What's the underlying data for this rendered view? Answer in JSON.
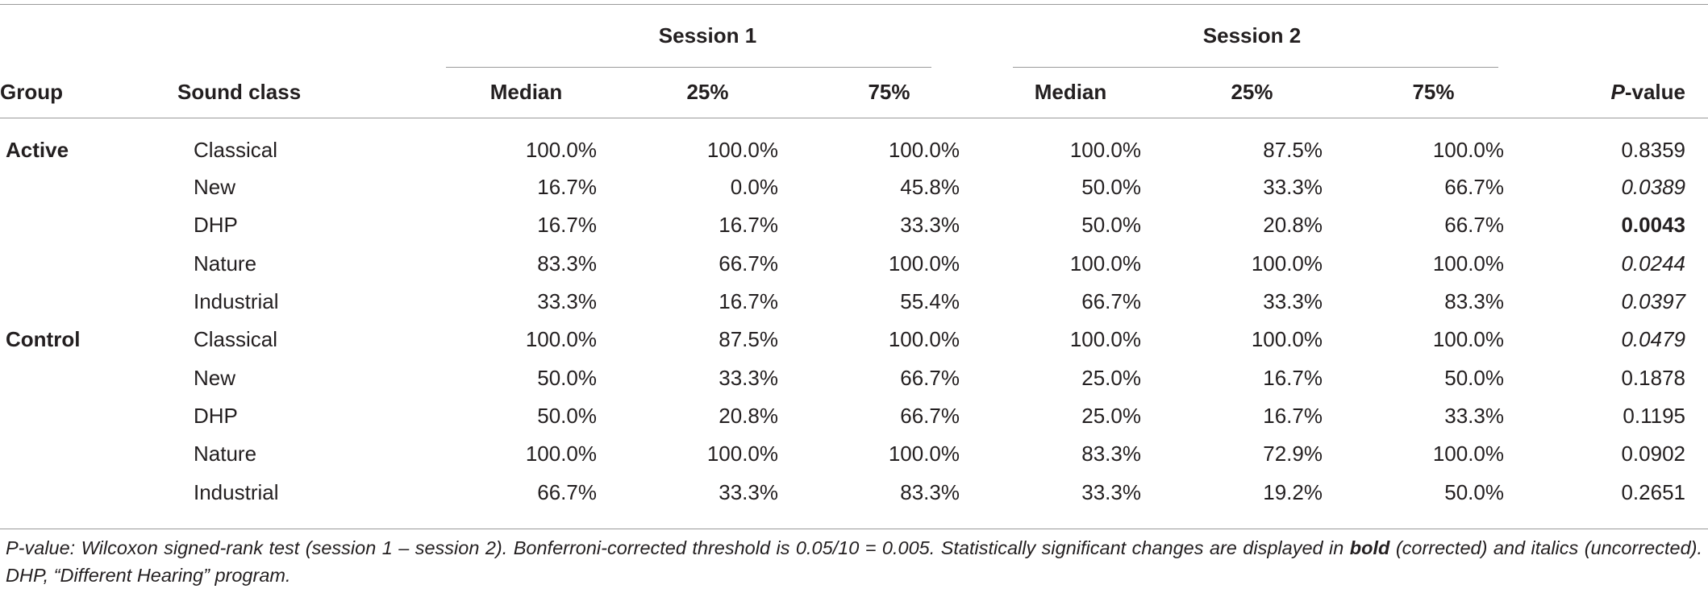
{
  "table": {
    "header": {
      "session1": "Session 1",
      "session2": "Session 2",
      "group": "Group",
      "sound_class": "Sound class",
      "median1": "Median",
      "p25_1": "25%",
      "p75_1": "75%",
      "median2": "Median",
      "p25_2": "25%",
      "p75_2": "75%",
      "p_letter": "P",
      "p_suffix": "-value"
    },
    "rows": [
      {
        "group": "Active",
        "sound_class": "Classical",
        "s1_median": "100.0%",
        "s1_p25": "100.0%",
        "s1_p75": "100.0%",
        "s2_median": "100.0%",
        "s2_p25": "87.5%",
        "s2_p75": "100.0%",
        "p_value": "0.8359",
        "p_style": "normal"
      },
      {
        "group": "",
        "sound_class": "New",
        "s1_median": "16.7%",
        "s1_p25": "0.0%",
        "s1_p75": "45.8%",
        "s2_median": "50.0%",
        "s2_p25": "33.3%",
        "s2_p75": "66.7%",
        "p_value": "0.0389",
        "p_style": "italic"
      },
      {
        "group": "",
        "sound_class": "DHP",
        "s1_median": "16.7%",
        "s1_p25": "16.7%",
        "s1_p75": "33.3%",
        "s2_median": "50.0%",
        "s2_p25": "20.8%",
        "s2_p75": "66.7%",
        "p_value": "0.0043",
        "p_style": "bold"
      },
      {
        "group": "",
        "sound_class": "Nature",
        "s1_median": "83.3%",
        "s1_p25": "66.7%",
        "s1_p75": "100.0%",
        "s2_median": "100.0%",
        "s2_p25": "100.0%",
        "s2_p75": "100.0%",
        "p_value": "0.0244",
        "p_style": "italic"
      },
      {
        "group": "",
        "sound_class": "Industrial",
        "s1_median": "33.3%",
        "s1_p25": "16.7%",
        "s1_p75": "55.4%",
        "s2_median": "66.7%",
        "s2_p25": "33.3%",
        "s2_p75": "83.3%",
        "p_value": "0.0397",
        "p_style": "italic"
      },
      {
        "group": "Control",
        "sound_class": "Classical",
        "s1_median": "100.0%",
        "s1_p25": "87.5%",
        "s1_p75": "100.0%",
        "s2_median": "100.0%",
        "s2_p25": "100.0%",
        "s2_p75": "100.0%",
        "p_value": "0.0479",
        "p_style": "italic"
      },
      {
        "group": "",
        "sound_class": "New",
        "s1_median": "50.0%",
        "s1_p25": "33.3%",
        "s1_p75": "66.7%",
        "s2_median": "25.0%",
        "s2_p25": "16.7%",
        "s2_p75": "50.0%",
        "p_value": "0.1878",
        "p_style": "normal"
      },
      {
        "group": "",
        "sound_class": "DHP",
        "s1_median": "50.0%",
        "s1_p25": "20.8%",
        "s1_p75": "66.7%",
        "s2_median": "25.0%",
        "s2_p25": "16.7%",
        "s2_p75": "33.3%",
        "p_value": "0.1195",
        "p_style": "normal"
      },
      {
        "group": "",
        "sound_class": "Nature",
        "s1_median": "100.0%",
        "s1_p25": "100.0%",
        "s1_p75": "100.0%",
        "s2_median": "83.3%",
        "s2_p25": "72.9%",
        "s2_p75": "100.0%",
        "p_value": "0.0902",
        "p_style": "normal"
      },
      {
        "group": "",
        "sound_class": "Industrial",
        "s1_median": "66.7%",
        "s1_p25": "33.3%",
        "s1_p75": "83.3%",
        "s2_median": "33.3%",
        "s2_p25": "19.2%",
        "s2_p75": "50.0%",
        "p_value": "0.2651",
        "p_style": "normal"
      }
    ]
  },
  "footnote": {
    "part1": "P-value: Wilcoxon signed-rank test (session 1 – session 2). Bonferroni-corrected threshold is 0.05/10 = 0.005. Statistically significant changes are displayed in ",
    "bold_word": "bold",
    "part2": " (corrected) and italics (uncorrected). DHP, “Different Hearing” program."
  }
}
